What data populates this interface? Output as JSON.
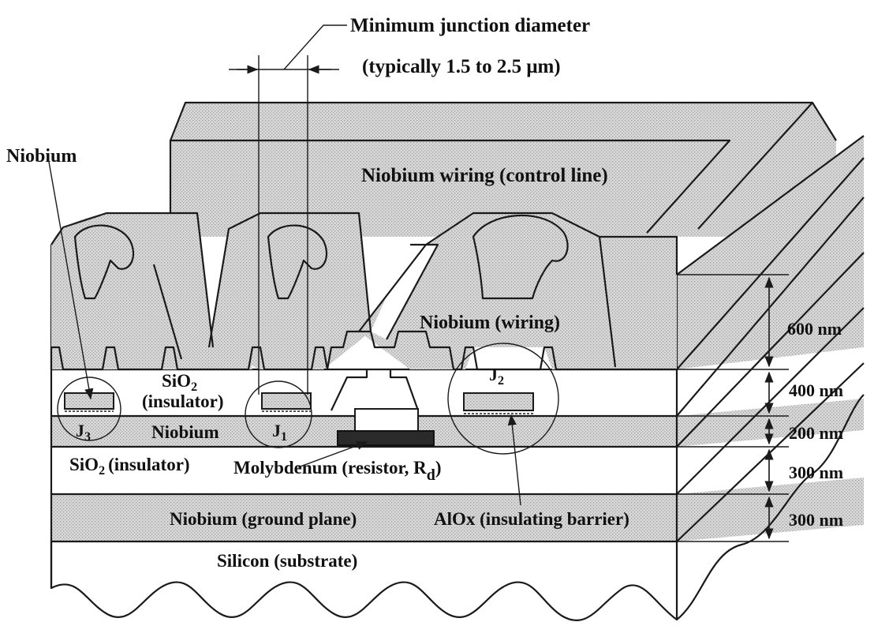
{
  "title": {
    "line1": "Minimum junction diameter",
    "line2": "(typically 1.5 to 2.5  μm)"
  },
  "labels": {
    "niobium_top": "Niobium",
    "niobium_wiring_control": "Niobium wiring (control line)",
    "niobium_wiring": "Niobium (wiring)",
    "sio2_upper": "SiO",
    "sio2_upper_sub": "2",
    "sio2_upper_insulator": "(insulator)",
    "niobium_mid": "Niobium",
    "sio2_lower": "SiO",
    "sio2_lower_sub": "2",
    "sio2_lower_insulator": "(insulator)",
    "molybdenum": "Molybdenum (resistor, R",
    "molybdenum_sub": "d",
    "molybdenum_close": ")",
    "ground_plane": "Niobium (ground plane)",
    "alox": "AlOx (insulating barrier)",
    "silicon": "Silicon (substrate)",
    "j1": "J",
    "j1_sub": "1",
    "j2": "J",
    "j2_sub": "2",
    "j3": "J",
    "j3_sub": "3"
  },
  "dimensions": {
    "d600": "600 nm",
    "d400": "400 nm",
    "d200": "200 nm",
    "d300a": "300 nm",
    "d300b": "300 nm"
  }
}
